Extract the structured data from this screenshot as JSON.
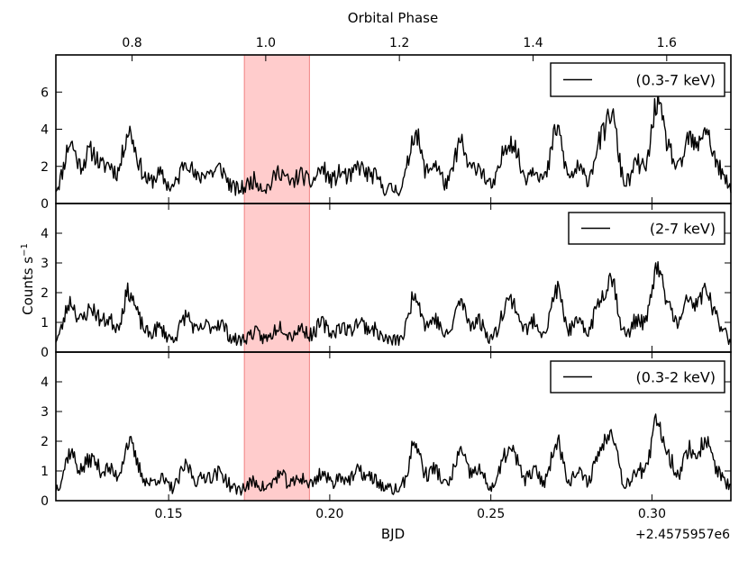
{
  "chart_data": {
    "type": "line",
    "title": "",
    "xlabel": "BJD",
    "ylabel": "Counts s",
    "ylabel_superscript": "−1",
    "x_offset_label": "+2.4575957e6",
    "top_axis": {
      "label": "Orbital Phase",
      "ticks": [
        0.8,
        1.0,
        1.2,
        1.4,
        1.6
      ],
      "tick_labels": [
        "0.8",
        "1.0",
        "1.2",
        "1.4",
        "1.6"
      ],
      "range": [
        0.686,
        1.696
      ]
    },
    "xlim": [
      0.115,
      0.3245
    ],
    "x_ticks": [
      0.15,
      0.2,
      0.25,
      0.3
    ],
    "x_tick_labels": [
      "0.15",
      "0.20",
      "0.25",
      "0.30"
    ],
    "shaded_region": {
      "x_start": 0.1735,
      "x_end": 0.1937,
      "color": "#ffcccc",
      "edge_color": "#f08080"
    },
    "line_color": "#000000",
    "panels": [
      {
        "legend": "(0.3-7 keV)",
        "ylim": [
          0,
          8
        ],
        "y_ticks": [
          0,
          2,
          4,
          6
        ],
        "y_tick_labels": [
          "0",
          "2",
          "4",
          "6"
        ],
        "scale": 1.0,
        "noise_seed": 11
      },
      {
        "legend": "(2-7 keV)",
        "ylim": [
          0,
          5
        ],
        "y_ticks": [
          0,
          1,
          2,
          3,
          4
        ],
        "y_tick_labels": [
          "0",
          "1",
          "2",
          "3",
          "4"
        ],
        "scale": 0.52,
        "noise_seed": 23
      },
      {
        "legend": "(0.3-2 keV)",
        "ylim": [
          0,
          5
        ],
        "y_ticks": [
          0,
          1,
          2,
          3,
          4
        ],
        "y_tick_labels": [
          "0",
          "1",
          "2",
          "3",
          "4"
        ],
        "scale": 0.5,
        "noise_seed": 37
      }
    ],
    "peaks": [
      {
        "x": 0.1195,
        "height": 2.5
      },
      {
        "x": 0.1245,
        "height": 1.2
      },
      {
        "x": 0.127,
        "height": 1.4
      },
      {
        "x": 0.1315,
        "height": 1.3
      },
      {
        "x": 0.1375,
        "height": 3.0
      },
      {
        "x": 0.141,
        "height": 0.9
      },
      {
        "x": 0.147,
        "height": 0.8
      },
      {
        "x": 0.1555,
        "height": 1.6
      },
      {
        "x": 0.1615,
        "height": 0.9
      },
      {
        "x": 0.166,
        "height": 1.1
      },
      {
        "x": 0.1765,
        "height": 0.5
      },
      {
        "x": 0.1845,
        "height": 1.0
      },
      {
        "x": 0.191,
        "height": 0.8
      },
      {
        "x": 0.1975,
        "height": 1.1
      },
      {
        "x": 0.2035,
        "height": 0.9
      },
      {
        "x": 0.209,
        "height": 1.2
      },
      {
        "x": 0.2135,
        "height": 0.7
      },
      {
        "x": 0.2265,
        "height": 3.1
      },
      {
        "x": 0.2325,
        "height": 1.4
      },
      {
        "x": 0.2405,
        "height": 2.5
      },
      {
        "x": 0.246,
        "height": 1.3
      },
      {
        "x": 0.2545,
        "height": 1.9
      },
      {
        "x": 0.2575,
        "height": 1.8
      },
      {
        "x": 0.2635,
        "height": 1.2
      },
      {
        "x": 0.2705,
        "height": 3.3
      },
      {
        "x": 0.277,
        "height": 1.1
      },
      {
        "x": 0.2835,
        "height": 2.2
      },
      {
        "x": 0.2875,
        "height": 3.9
      },
      {
        "x": 0.2955,
        "height": 1.4
      },
      {
        "x": 0.3015,
        "height": 4.5
      },
      {
        "x": 0.3055,
        "height": 1.8
      },
      {
        "x": 0.3115,
        "height": 2.7
      },
      {
        "x": 0.3165,
        "height": 3.2
      },
      {
        "x": 0.3205,
        "height": 1.0
      }
    ]
  }
}
